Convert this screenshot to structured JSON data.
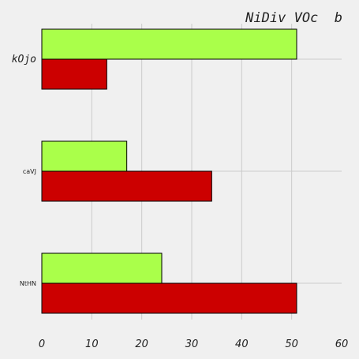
{
  "chart_data": {
    "type": "bar",
    "orientation": "horizontal",
    "title": "NiDiv VOc  b",
    "categories": [
      "kOjo",
      "caVJ",
      "NtHN"
    ],
    "series": [
      {
        "color": "#aaff4a",
        "values": [
          51,
          17,
          24
        ]
      },
      {
        "color": "#cc0000",
        "values": [
          13,
          34,
          51
        ]
      }
    ],
    "xticks": [
      "0",
      "10",
      "20",
      "30",
      "40",
      "50",
      "60"
    ],
    "xlim": [
      0,
      60
    ],
    "grid": true,
    "background": "#f0f0f0"
  }
}
